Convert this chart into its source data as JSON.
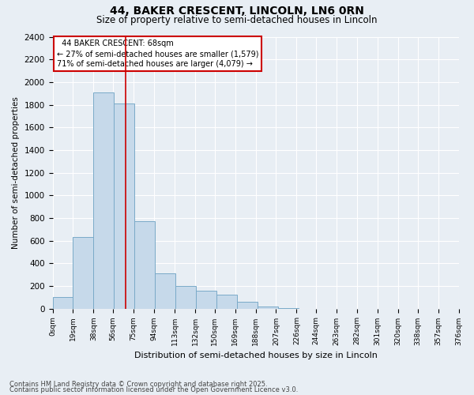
{
  "title_line1": "44, BAKER CRESCENT, LINCOLN, LN6 0RN",
  "title_line2": "Size of property relative to semi-detached houses in Lincoln",
  "xlabel": "Distribution of semi-detached houses by size in Lincoln",
  "ylabel": "Number of semi-detached properties",
  "property_size": 68,
  "annotation_title": "44 BAKER CRESCENT: 68sqm",
  "annotation_line2": "← 27% of semi-detached houses are smaller (1,579)",
  "annotation_line3": "71% of semi-detached houses are larger (4,079) →",
  "footer_line1": "Contains HM Land Registry data © Crown copyright and database right 2025.",
  "footer_line2": "Contains public sector information licensed under the Open Government Licence v3.0.",
  "bar_color": "#c6d9ea",
  "bar_edge_color": "#7aaac8",
  "bin_size": 19,
  "bins_start": 0,
  "bar_values": [
    100,
    630,
    1910,
    1810,
    770,
    310,
    200,
    155,
    120,
    60,
    20,
    5,
    0,
    0,
    0,
    0,
    0,
    0,
    0,
    0
  ],
  "n_xtick_labels": 20,
  "xtick_values": [
    0,
    19,
    38,
    56,
    75,
    94,
    113,
    132,
    150,
    169,
    188,
    207,
    226,
    244,
    263,
    282,
    301,
    320,
    338,
    357,
    376
  ],
  "ylim": [
    0,
    2400
  ],
  "yticks": [
    0,
    200,
    400,
    600,
    800,
    1000,
    1200,
    1400,
    1600,
    1800,
    2000,
    2200,
    2400
  ],
  "red_line_color": "#cc0000",
  "background_color": "#e8eef4",
  "grid_color": "#ffffff",
  "annotation_box_color": "#ffffff",
  "annotation_border_color": "#cc0000",
  "title_fontsize": 10,
  "subtitle_fontsize": 8.5,
  "ylabel_fontsize": 7.5,
  "xlabel_fontsize": 8,
  "ytick_fontsize": 7.5,
  "xtick_fontsize": 6.5,
  "annotation_fontsize": 7,
  "footer_fontsize": 6
}
